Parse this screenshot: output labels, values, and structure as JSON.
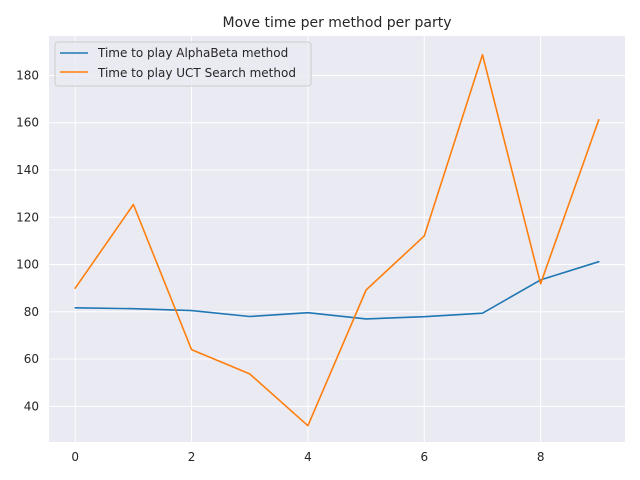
{
  "chart_data": {
    "type": "line",
    "title": "Move time per method per party",
    "xlabel": "",
    "ylabel": "",
    "x": [
      0,
      1,
      2,
      3,
      4,
      5,
      6,
      7,
      8,
      9
    ],
    "series": [
      {
        "name": "Time to play AlphaBeta method",
        "color": "#1f77b4",
        "values": [
          81.7,
          81.3,
          80.5,
          78.0,
          79.6,
          77.0,
          77.9,
          79.4,
          93.5,
          101.2
        ]
      },
      {
        "name": "Time to play UCT Search method",
        "color": "#ff7f0e",
        "values": [
          90.0,
          125.4,
          64.0,
          53.7,
          31.8,
          89.2,
          112.1,
          188.8,
          91.9,
          161.3
        ]
      }
    ],
    "xlim": [
      -0.45,
      9.45
    ],
    "ylim": [
      24.9,
      196.7
    ],
    "xticks": [
      0,
      2,
      4,
      6,
      8
    ],
    "yticks": [
      40,
      60,
      80,
      100,
      120,
      140,
      160,
      180
    ],
    "grid": true,
    "legend_position": "upper-left",
    "background": "#eaeaf2"
  }
}
